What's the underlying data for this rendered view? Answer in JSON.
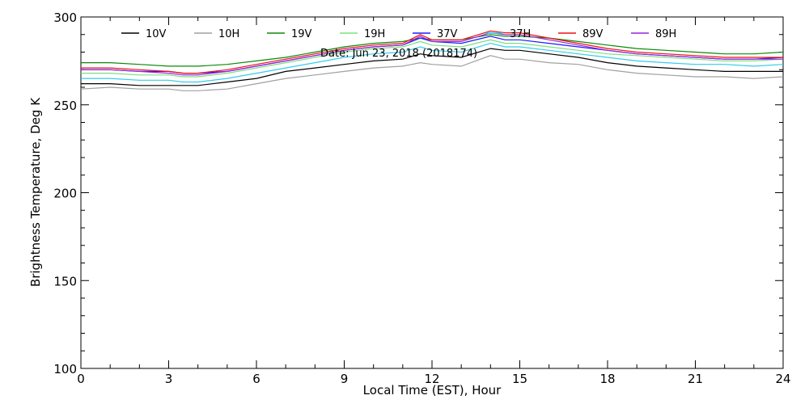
{
  "chart_data": {
    "type": "line",
    "title": "",
    "xlabel": "Local Time (EST), Hour",
    "ylabel": "Brightness Temperature, Deg K",
    "annotation": "Date: Jun 23, 2018 (2018174)",
    "xlim": [
      0,
      24
    ],
    "ylim": [
      100,
      300
    ],
    "x_ticks": [
      0,
      3,
      6,
      9,
      12,
      15,
      18,
      21,
      24
    ],
    "y_ticks": [
      100,
      150,
      200,
      250,
      300
    ],
    "x_tick_labels": [
      "0",
      "3",
      "6",
      "9",
      "12",
      "15",
      "18",
      "21",
      "24"
    ],
    "y_tick_labels": [
      "100",
      "150",
      "200",
      "250",
      "300"
    ],
    "grid": false,
    "legend_position": "top",
    "x": [
      0,
      1,
      2,
      3,
      3.5,
      4,
      5,
      6,
      7,
      8,
      9,
      10,
      11,
      11.6,
      12,
      13,
      14,
      14.5,
      15,
      16,
      17,
      18,
      19,
      20,
      21,
      22,
      23,
      24
    ],
    "series": [
      {
        "name": "10V",
        "color": "#000000",
        "values": [
          262,
          262,
          261,
          261,
          261,
          261,
          263,
          265,
          269,
          271,
          273,
          275,
          276,
          279,
          278,
          277,
          282,
          281,
          281,
          279,
          277,
          274,
          272,
          271,
          270,
          269,
          269,
          269
        ]
      },
      {
        "name": "10H",
        "color": "#a0a0a0",
        "values": [
          259,
          260,
          259,
          259,
          258,
          258,
          259,
          262,
          265,
          267,
          269,
          271,
          272,
          274,
          273,
          272,
          278,
          276,
          276,
          274,
          273,
          270,
          268,
          267,
          266,
          266,
          265,
          266
        ]
      },
      {
        "name": "19V",
        "color": "#0a8a0a",
        "values": [
          274,
          274,
          273,
          272,
          272,
          272,
          273,
          275,
          277,
          280,
          283,
          285,
          286,
          288,
          287,
          287,
          290,
          289,
          289,
          288,
          286,
          284,
          282,
          281,
          280,
          279,
          279,
          280
        ]
      },
      {
        "name": "19H",
        "color": "#7be07b",
        "values": [
          268,
          268,
          267,
          267,
          266,
          266,
          268,
          271,
          274,
          277,
          280,
          282,
          283,
          286,
          284,
          283,
          287,
          285,
          285,
          283,
          281,
          279,
          278,
          277,
          276,
          275,
          275,
          276
        ]
      },
      {
        "name": "37V",
        "color": "#1a1aff",
        "values": [
          270,
          270,
          269,
          269,
          268,
          268,
          269,
          272,
          275,
          278,
          281,
          283,
          284,
          288,
          286,
          285,
          289,
          287,
          287,
          285,
          283,
          281,
          279,
          278,
          277,
          276,
          276,
          277
        ]
      },
      {
        "name": "37H",
        "color": "#33ccee",
        "values": [
          265,
          265,
          264,
          264,
          263,
          263,
          265,
          268,
          271,
          274,
          277,
          279,
          280,
          283,
          281,
          280,
          285,
          283,
          283,
          281,
          279,
          277,
          275,
          274,
          273,
          273,
          272,
          273
        ]
      },
      {
        "name": "89V",
        "color": "#ee1111",
        "values": [
          271,
          271,
          270,
          269,
          268,
          268,
          270,
          273,
          276,
          279,
          282,
          284,
          285,
          290,
          287,
          287,
          292,
          291,
          291,
          288,
          285,
          282,
          280,
          279,
          278,
          277,
          277,
          277
        ]
      },
      {
        "name": "89H",
        "color": "#9922dd",
        "values": [
          270,
          270,
          269,
          268,
          267,
          267,
          269,
          272,
          275,
          278,
          281,
          283,
          284,
          289,
          286,
          286,
          291,
          290,
          290,
          287,
          284,
          281,
          279,
          278,
          277,
          276,
          276,
          276
        ]
      }
    ]
  }
}
